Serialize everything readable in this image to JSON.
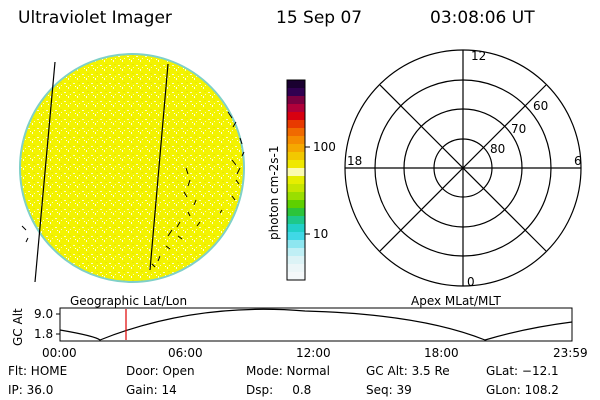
{
  "header": {
    "title": "Ultraviolet Imager",
    "date": "15 Sep 07",
    "time": "03:08:06 UT"
  },
  "globe_panel": {
    "caption": "Geographic Lat/Lon",
    "fill_color": "#f2f200",
    "rim_color": "#7fd0c8"
  },
  "colorbar": {
    "label": "photon cm-2s-1",
    "ticks": [
      "100",
      "10"
    ]
  },
  "polar_plot": {
    "caption": "Apex MLat/MLT",
    "mlt_labels": [
      "12",
      "18",
      "6",
      "0"
    ],
    "mlat_labels": [
      "60",
      "70",
      "80"
    ]
  },
  "altitude_panel": {
    "ylabel": "GC Alt",
    "y_ticks": [
      "9.0",
      "1.8"
    ],
    "x_ticks": [
      "00:00",
      "06:00",
      "12:00",
      "18:00",
      "23:59"
    ],
    "marker_color": "#e00000"
  },
  "info": {
    "row1": [
      "Flt: HOME",
      "Door: Open",
      "Mode: Normal",
      "GC Alt: 3.5 Re",
      "GLat: −12.1"
    ],
    "row2": [
      "IP: 36.0",
      "Gain: 14",
      "Dsp:     0.8",
      "Seq: 39",
      "GLon: 108.2"
    ]
  }
}
